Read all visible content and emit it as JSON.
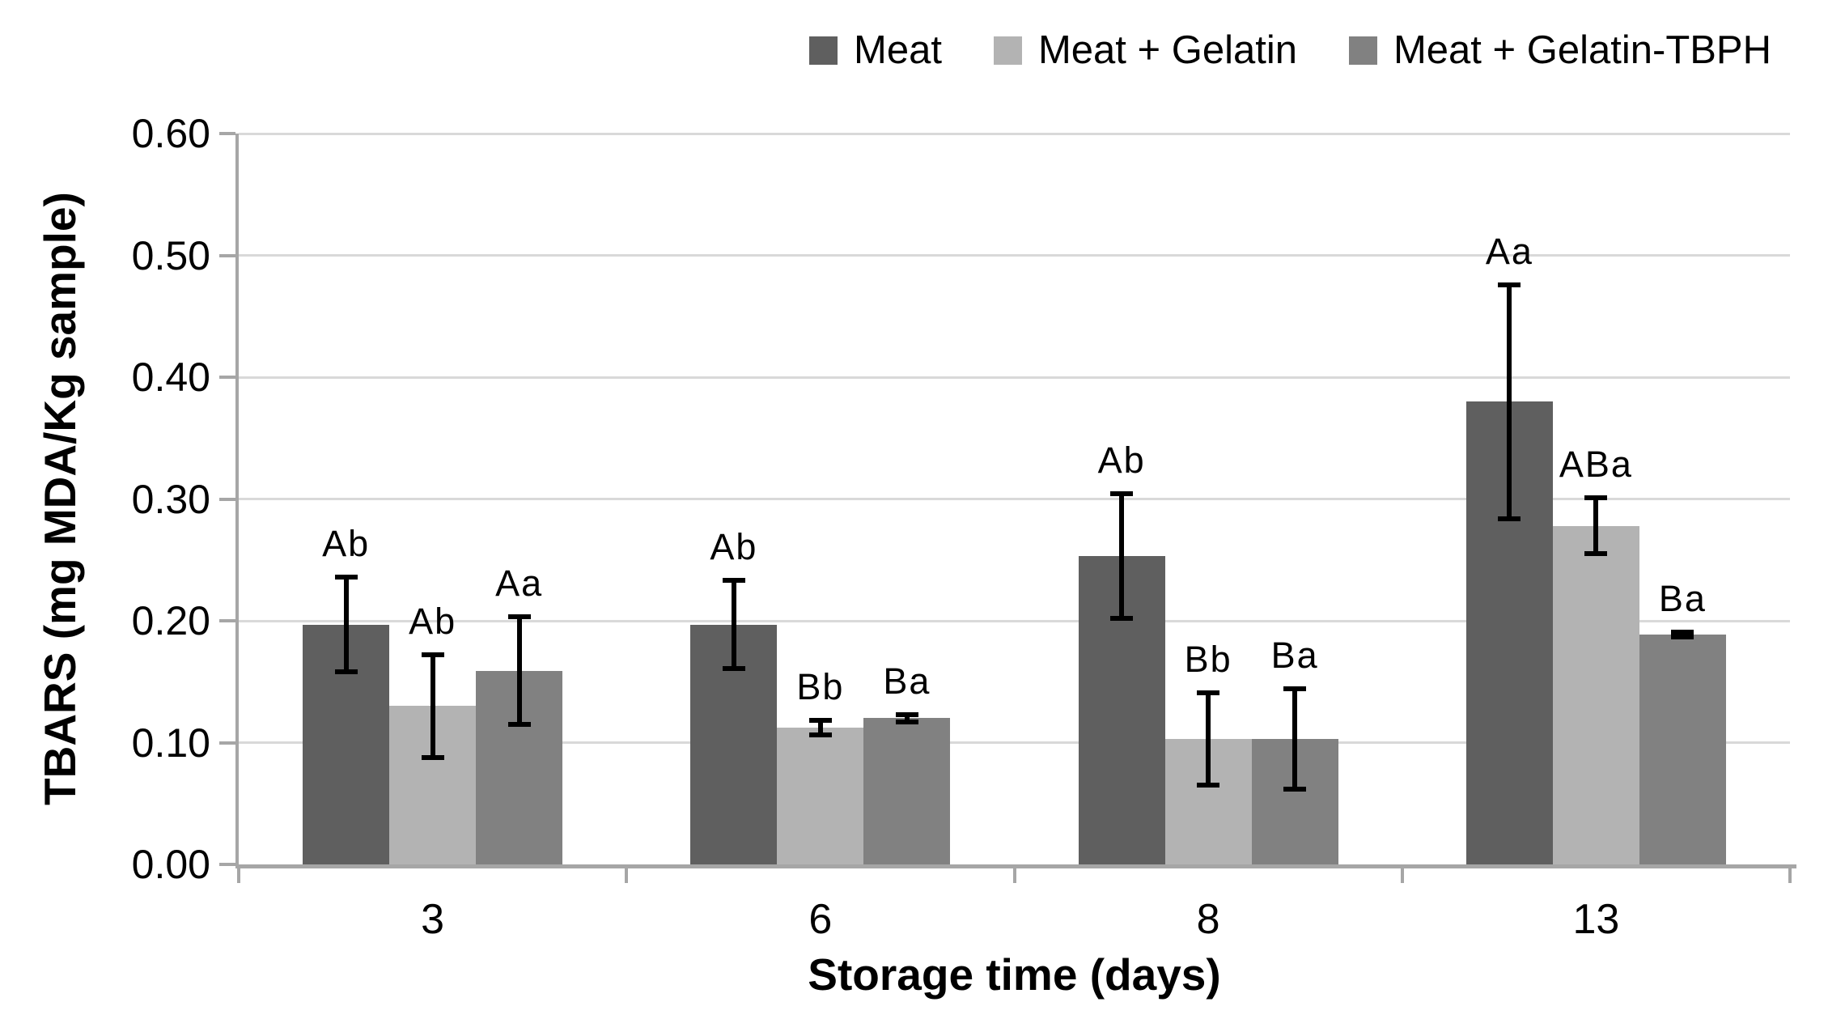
{
  "chart_data": {
    "type": "bar",
    "title": "",
    "xlabel": "Storage time (days)",
    "ylabel": "TBARS (mg MDA/Kg sample)",
    "ylim": [
      0,
      0.6
    ],
    "ytick_labels": [
      "0.00",
      "0.10",
      "0.20",
      "0.30",
      "0.40",
      "0.50",
      "0.60"
    ],
    "grid": true,
    "legend_position": "top",
    "categories": [
      "3",
      "6",
      "8",
      "13"
    ],
    "series": [
      {
        "name": "Meat",
        "color": "#5f5f5f",
        "values": [
          0.197,
          0.197,
          0.253,
          0.38
        ],
        "errors": [
          0.041,
          0.038,
          0.053,
          0.098
        ],
        "sig_labels": [
          "Ab",
          "Ab",
          "Ab",
          "Aa"
        ]
      },
      {
        "name": "Meat + Gelatin",
        "color": "#b3b3b3",
        "values": [
          0.13,
          0.112,
          0.103,
          0.278
        ],
        "errors": [
          0.044,
          0.008,
          0.04,
          0.025
        ],
        "sig_labels": [
          "Ab",
          "Bb",
          "Bb",
          "ABa"
        ]
      },
      {
        "name": "Meat + Gelatin-TBPH",
        "color": "#818181",
        "values": [
          0.159,
          0.12,
          0.103,
          0.189
        ],
        "errors": [
          0.046,
          0.005,
          0.043,
          0.004
        ],
        "sig_labels": [
          "Aa",
          "Ba",
          "Ba",
          "Ba"
        ]
      }
    ]
  },
  "colors": {
    "background": "#ffffff",
    "gridline": "#d9d9d9",
    "axis": "#a6a6a6",
    "error_bar": "#000000",
    "text": "#000000"
  }
}
